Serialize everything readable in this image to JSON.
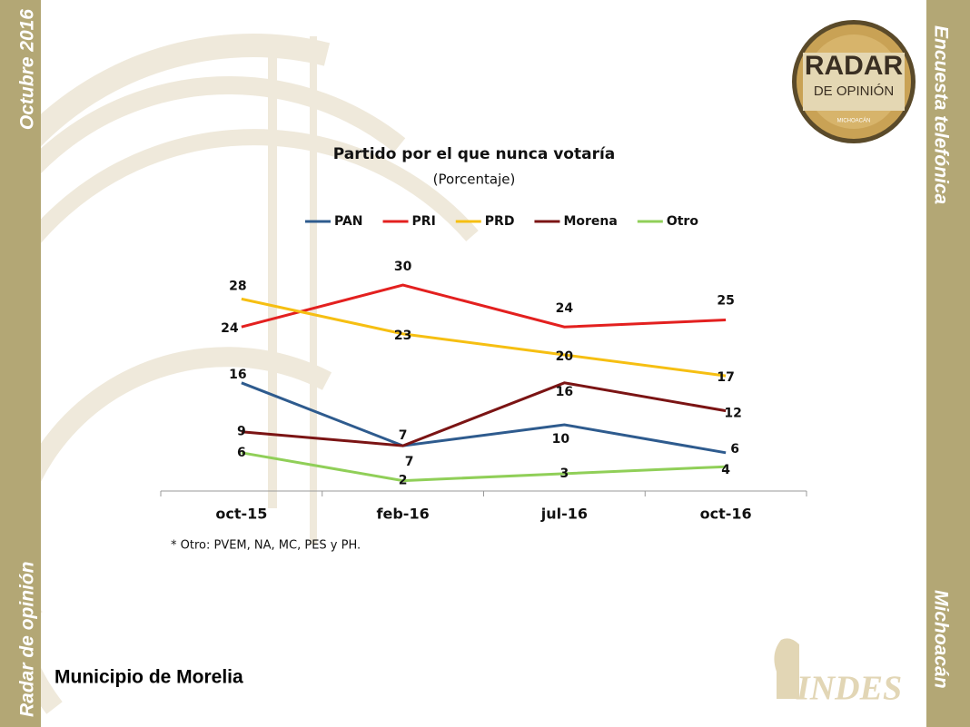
{
  "side_text": {
    "top_left": "Octubre 2016",
    "bottom_left": "Radar de opinión",
    "top_right": "Encuesta telefónica",
    "bottom_right": "Michoacán"
  },
  "logo": {
    "line1": "RADAR",
    "line2": "DE OPINIÓN",
    "line3": "MICHOACÁN"
  },
  "brand": "INDES",
  "footer": "Municipio de Morelia",
  "chart_data": {
    "type": "line",
    "title": "Partido por el que nunca votaría",
    "subtitle": "(Porcentaje)",
    "note": "* Otro: PVEM,  NA, MC, PES y PH.",
    "categories": [
      "oct-15",
      "feb-16",
      "jul-16",
      "oct-16"
    ],
    "series": [
      {
        "name": "PAN",
        "color": "#2e5b8e",
        "values": [
          16,
          7,
          10,
          6
        ]
      },
      {
        "name": "PRI",
        "color": "#e3201f",
        "values": [
          24,
          30,
          24,
          25
        ]
      },
      {
        "name": "PRD",
        "color": "#f6bf12",
        "values": [
          28,
          23,
          20,
          17
        ]
      },
      {
        "name": "Morena",
        "color": "#7b1414",
        "values": [
          9,
          7,
          16,
          12
        ]
      },
      {
        "name": "Otro",
        "color": "#90cf58",
        "values": [
          6,
          2,
          3,
          4
        ]
      }
    ],
    "ylim": [
      0,
      35
    ],
    "legend": "top"
  }
}
